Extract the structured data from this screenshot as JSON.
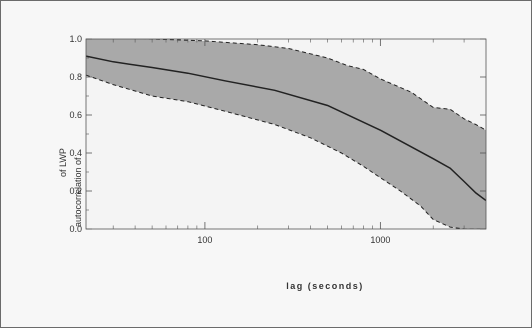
{
  "chart_data": {
    "type": "area",
    "title": "",
    "xlabel": "lag (seconds)",
    "ylabel_parts": [
      "autocorrelation of",
      "of LWP"
    ],
    "x_scale": "log",
    "xlim": [
      21,
      4000
    ],
    "ylim": [
      0,
      1
    ],
    "x_ticks": [
      {
        "value": 100,
        "label": "100"
      },
      {
        "value": 1000,
        "label": "1000"
      }
    ],
    "y_ticks": [
      {
        "value": 0.0,
        "label": "0.0"
      },
      {
        "value": 0.2,
        "label": "0.2"
      },
      {
        "value": 0.4,
        "label": "0.4"
      },
      {
        "value": 0.6,
        "label": "0.6"
      },
      {
        "value": 0.8,
        "label": "0.8"
      },
      {
        "value": 1.0,
        "label": "1.0"
      }
    ],
    "grid": false,
    "series": [
      {
        "role": "mean",
        "style": "solid",
        "x": [
          21,
          30,
          50,
          80,
          130,
          250,
          500,
          1000,
          2000,
          2500,
          3000,
          3500,
          4000
        ],
        "y": [
          0.91,
          0.88,
          0.85,
          0.82,
          0.78,
          0.73,
          0.65,
          0.52,
          0.37,
          0.32,
          0.25,
          0.19,
          0.15
        ]
      },
      {
        "role": "upper-bound",
        "style": "dashed",
        "x": [
          21,
          50,
          100,
          200,
          300,
          500,
          650,
          800,
          1000,
          1500,
          2000,
          2500,
          3000,
          3500,
          4000
        ],
        "y": [
          1.02,
          1.0,
          0.99,
          0.97,
          0.95,
          0.9,
          0.86,
          0.84,
          0.79,
          0.72,
          0.64,
          0.63,
          0.58,
          0.55,
          0.52
        ]
      },
      {
        "role": "lower-bound",
        "style": "dashed",
        "x": [
          21,
          30,
          50,
          80,
          130,
          250,
          400,
          600,
          800,
          1000,
          1300,
          1700,
          2000,
          2500,
          3000,
          4000
        ],
        "y": [
          0.81,
          0.76,
          0.7,
          0.67,
          0.62,
          0.55,
          0.48,
          0.4,
          0.33,
          0.27,
          0.2,
          0.12,
          0.05,
          0.01,
          0.0,
          0.0
        ]
      }
    ],
    "band_color": "#a9a9a9",
    "line_color": "#222222"
  }
}
